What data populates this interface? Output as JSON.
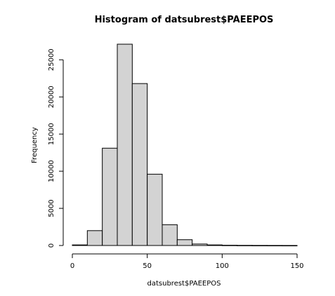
{
  "chart_data": {
    "type": "bar",
    "title": "Histogram of datsubrest$PAEEPOS",
    "xlabel": "datsubrest$PAEEPOS",
    "ylabel": "Frequency",
    "bin_edges": [
      0,
      10,
      20,
      30,
      40,
      50,
      60,
      70,
      80,
      90,
      100,
      110,
      120,
      130,
      140,
      150
    ],
    "values": [
      80,
      2000,
      13100,
      27100,
      21800,
      9600,
      2800,
      780,
      200,
      80,
      35,
      20,
      12,
      8,
      5
    ],
    "xlim": [
      0,
      150
    ],
    "ylim": [
      0,
      27100
    ],
    "x_ticks": [
      0,
      50,
      100,
      150
    ],
    "y_ticks": [
      0,
      5000,
      10000,
      15000,
      20000,
      25000
    ],
    "bar_fill": "#d3d3d3",
    "bar_stroke": "#000000",
    "grid": false,
    "legend": "none"
  }
}
